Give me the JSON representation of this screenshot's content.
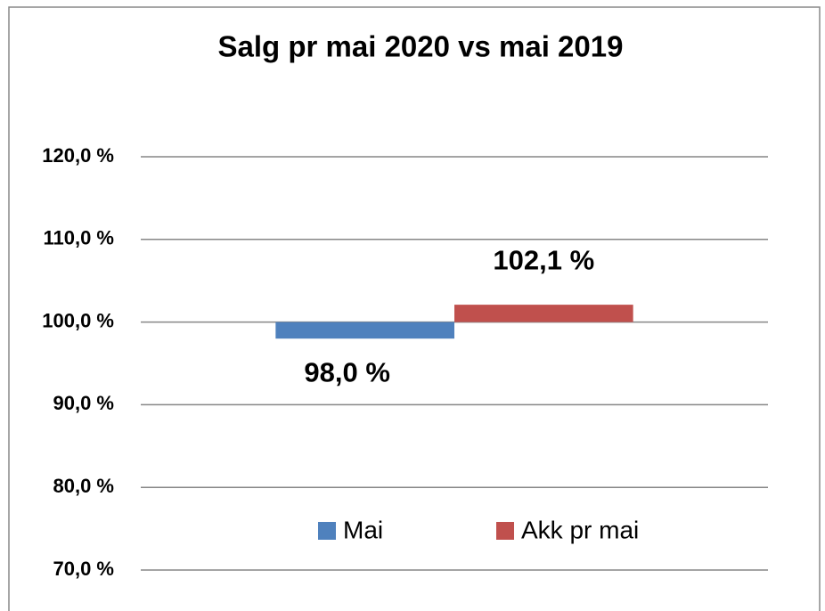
{
  "chart_data": {
    "type": "bar",
    "title": "Salg pr mai 2020 vs mai 2019",
    "categories": [
      null
    ],
    "series": [
      {
        "name": "Mai",
        "color": "#4f81bd",
        "values": [
          98.0
        ],
        "value_labels": [
          "98,0 %"
        ]
      },
      {
        "name": "Akk pr mai",
        "color": "#c0504d",
        "values": [
          102.1
        ],
        "value_labels": [
          "102,1 %"
        ]
      }
    ],
    "ylim": [
      70,
      120
    ],
    "yticks": [
      {
        "value": 70,
        "label": "70,0 %"
      },
      {
        "value": 80,
        "label": "80,0 %"
      },
      {
        "value": 90,
        "label": "90,0 %"
      },
      {
        "value": 100,
        "label": "100,0 %"
      },
      {
        "value": 110,
        "label": "110,0 %"
      },
      {
        "value": 120,
        "label": "120,0 %"
      }
    ],
    "baseline": 100,
    "grid": true,
    "legend": "bottom"
  }
}
